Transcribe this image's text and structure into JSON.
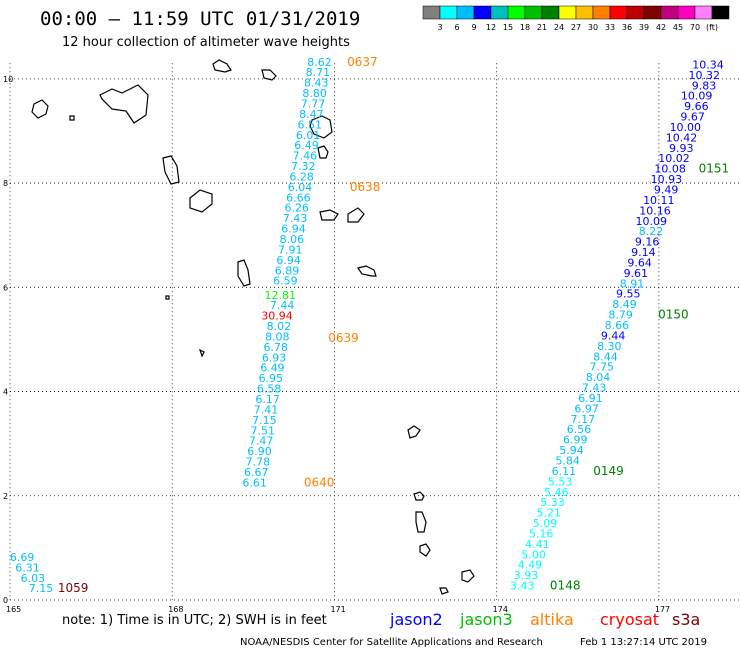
{
  "header": {
    "title": "00:00 – 11:59 UTC 01/31/2019",
    "subtitle": "12 hour collection of altimeter wave heights"
  },
  "colorbar": {
    "swatches": [
      "#808080",
      "#00ffff",
      "#00bfff",
      "#0000ff",
      "#00bfbf",
      "#00ff00",
      "#00bf00",
      "#008000",
      "#ffff00",
      "#ffbf00",
      "#ff8000",
      "#ff0000",
      "#bf0000",
      "#800000",
      "#bf0080",
      "#ff00bf",
      "#ff80ff",
      "#000000"
    ],
    "labels": [
      "3",
      "6",
      "9",
      "12",
      "15",
      "18",
      "21",
      "24",
      "27",
      "30",
      "33",
      "36",
      "39",
      "42",
      "45",
      "70",
      "(ft)"
    ]
  },
  "axes": {
    "x_ticks": [
      "165",
      "168",
      "171",
      "174",
      "177"
    ],
    "y_ticks": [
      "0",
      "2",
      "4",
      "6",
      "8",
      "10"
    ]
  },
  "chart_data": {
    "type": "map",
    "x_range": [
      165,
      178.5
    ],
    "y_range": [
      0,
      10.4
    ],
    "grid": "dotted",
    "points": [
      {
        "lon": 170.95,
        "lat": 10.25,
        "v": "8.62",
        "c": "#00bfff"
      },
      {
        "lon": 170.92,
        "lat": 10.05,
        "v": "8.71",
        "c": "#00bfff"
      },
      {
        "lon": 170.89,
        "lat": 9.85,
        "v": "8.43",
        "c": "#00bfff"
      },
      {
        "lon": 170.86,
        "lat": 9.65,
        "v": "8.80",
        "c": "#00bfff"
      },
      {
        "lon": 170.83,
        "lat": 9.45,
        "v": "7.77",
        "c": "#00bfff"
      },
      {
        "lon": 170.8,
        "lat": 9.25,
        "v": "8.47",
        "c": "#00bfff"
      },
      {
        "lon": 170.77,
        "lat": 9.05,
        "v": "6.51",
        "c": "#00bfff"
      },
      {
        "lon": 170.74,
        "lat": 8.85,
        "v": "6.01",
        "c": "#00bfff"
      },
      {
        "lon": 170.71,
        "lat": 8.65,
        "v": "6.49",
        "c": "#00bfff"
      },
      {
        "lon": 170.68,
        "lat": 8.45,
        "v": "7.46",
        "c": "#00bfff"
      },
      {
        "lon": 170.65,
        "lat": 8.25,
        "v": "7.32",
        "c": "#00bfff"
      },
      {
        "lon": 170.62,
        "lat": 8.05,
        "v": "6.28",
        "c": "#00bfff"
      },
      {
        "lon": 170.59,
        "lat": 7.85,
        "v": "6.04",
        "c": "#00bfff"
      },
      {
        "lon": 170.56,
        "lat": 7.65,
        "v": "6.66",
        "c": "#00bfff"
      },
      {
        "lon": 170.53,
        "lat": 7.45,
        "v": "6.26",
        "c": "#00bfff"
      },
      {
        "lon": 170.5,
        "lat": 7.25,
        "v": "7.43",
        "c": "#00bfff"
      },
      {
        "lon": 170.47,
        "lat": 7.05,
        "v": "6.94",
        "c": "#00bfff"
      },
      {
        "lon": 170.44,
        "lat": 6.85,
        "v": "8.06",
        "c": "#00bfff"
      },
      {
        "lon": 170.41,
        "lat": 6.65,
        "v": "7.91",
        "c": "#00bfff"
      },
      {
        "lon": 170.38,
        "lat": 6.45,
        "v": "6.94",
        "c": "#00bfff"
      },
      {
        "lon": 170.35,
        "lat": 6.25,
        "v": "6.89",
        "c": "#00bfff"
      },
      {
        "lon": 170.32,
        "lat": 6.05,
        "v": "6.59",
        "c": "#00bfff"
      },
      {
        "lon": 170.29,
        "lat": 5.78,
        "v": "12.81",
        "c": "#00ff00"
      },
      {
        "lon": 170.26,
        "lat": 5.58,
        "v": "7.44",
        "c": "#00bfff"
      },
      {
        "lon": 170.23,
        "lat": 5.38,
        "v": "30.94",
        "c": "#ff0000"
      },
      {
        "lon": 170.2,
        "lat": 5.18,
        "v": "8.02",
        "c": "#00bfff"
      },
      {
        "lon": 170.17,
        "lat": 4.98,
        "v": "8.08",
        "c": "#00bfff"
      },
      {
        "lon": 170.14,
        "lat": 4.78,
        "v": "6.78",
        "c": "#00bfff"
      },
      {
        "lon": 170.11,
        "lat": 4.58,
        "v": "6.93",
        "c": "#00bfff"
      },
      {
        "lon": 170.08,
        "lat": 4.38,
        "v": "6.49",
        "c": "#00bfff"
      },
      {
        "lon": 170.05,
        "lat": 4.18,
        "v": "6.95",
        "c": "#00bfff"
      },
      {
        "lon": 170.02,
        "lat": 3.98,
        "v": "6.58",
        "c": "#00bfff"
      },
      {
        "lon": 169.99,
        "lat": 3.78,
        "v": "6.17",
        "c": "#00bfff"
      },
      {
        "lon": 169.96,
        "lat": 3.58,
        "v": "7.41",
        "c": "#00bfff"
      },
      {
        "lon": 169.93,
        "lat": 3.38,
        "v": "7.15",
        "c": "#00bfff"
      },
      {
        "lon": 169.9,
        "lat": 3.18,
        "v": "7.51",
        "c": "#00bfff"
      },
      {
        "lon": 169.87,
        "lat": 2.98,
        "v": "7.47",
        "c": "#00bfff"
      },
      {
        "lon": 169.84,
        "lat": 2.78,
        "v": "6.90",
        "c": "#00bfff"
      },
      {
        "lon": 169.81,
        "lat": 2.58,
        "v": "7.78",
        "c": "#00bfff"
      },
      {
        "lon": 169.78,
        "lat": 2.38,
        "v": "6.67",
        "c": "#00bfff"
      },
      {
        "lon": 169.75,
        "lat": 2.18,
        "v": "6.61",
        "c": "#00bfff"
      },
      {
        "lon": 178.2,
        "lat": 10.2,
        "v": "10.34",
        "c": "#0000ff"
      },
      {
        "lon": 178.13,
        "lat": 10.0,
        "v": "10.32",
        "c": "#0000ff"
      },
      {
        "lon": 178.06,
        "lat": 9.8,
        "v": "9.83",
        "c": "#0000ff"
      },
      {
        "lon": 177.99,
        "lat": 9.6,
        "v": "10.09",
        "c": "#0000ff"
      },
      {
        "lon": 177.92,
        "lat": 9.4,
        "v": "9.66",
        "c": "#0000ff"
      },
      {
        "lon": 177.85,
        "lat": 9.2,
        "v": "9.67",
        "c": "#0000ff"
      },
      {
        "lon": 177.78,
        "lat": 9.0,
        "v": "10.00",
        "c": "#0000ff"
      },
      {
        "lon": 177.71,
        "lat": 8.8,
        "v": "10.42",
        "c": "#0000ff"
      },
      {
        "lon": 177.64,
        "lat": 8.6,
        "v": "9.93",
        "c": "#0000ff"
      },
      {
        "lon": 177.57,
        "lat": 8.4,
        "v": "10.02",
        "c": "#0000ff"
      },
      {
        "lon": 177.5,
        "lat": 8.2,
        "v": "10.08",
        "c": "#0000ff"
      },
      {
        "lon": 177.43,
        "lat": 8.0,
        "v": "10.93",
        "c": "#0000ff"
      },
      {
        "lon": 177.36,
        "lat": 7.8,
        "v": "9.49",
        "c": "#0000ff"
      },
      {
        "lon": 177.29,
        "lat": 7.6,
        "v": "10.11",
        "c": "#0000ff"
      },
      {
        "lon": 177.22,
        "lat": 7.4,
        "v": "10.16",
        "c": "#0000ff"
      },
      {
        "lon": 177.15,
        "lat": 7.2,
        "v": "10.09",
        "c": "#0000ff"
      },
      {
        "lon": 177.08,
        "lat": 7.0,
        "v": "8.22",
        "c": "#00bfff"
      },
      {
        "lon": 177.01,
        "lat": 6.8,
        "v": "9.16",
        "c": "#0000ff"
      },
      {
        "lon": 176.94,
        "lat": 6.6,
        "v": "9.14",
        "c": "#0000ff"
      },
      {
        "lon": 176.87,
        "lat": 6.4,
        "v": "9.64",
        "c": "#0000ff"
      },
      {
        "lon": 176.8,
        "lat": 6.2,
        "v": "9.61",
        "c": "#0000ff"
      },
      {
        "lon": 176.73,
        "lat": 6.0,
        "v": "8.91",
        "c": "#00bfff"
      },
      {
        "lon": 176.66,
        "lat": 5.8,
        "v": "9.55",
        "c": "#0000ff"
      },
      {
        "lon": 176.59,
        "lat": 5.6,
        "v": "8.49",
        "c": "#00bfff"
      },
      {
        "lon": 176.52,
        "lat": 5.4,
        "v": "8.79",
        "c": "#00bfff"
      },
      {
        "lon": 176.45,
        "lat": 5.2,
        "v": "8.66",
        "c": "#00bfff"
      },
      {
        "lon": 176.38,
        "lat": 5.0,
        "v": "9.44",
        "c": "#0000ff"
      },
      {
        "lon": 176.31,
        "lat": 4.8,
        "v": "8.30",
        "c": "#00bfff"
      },
      {
        "lon": 176.24,
        "lat": 4.6,
        "v": "8.44",
        "c": "#00bfff"
      },
      {
        "lon": 176.17,
        "lat": 4.4,
        "v": "7.75",
        "c": "#00bfff"
      },
      {
        "lon": 176.1,
        "lat": 4.2,
        "v": "8.04",
        "c": "#00bfff"
      },
      {
        "lon": 176.03,
        "lat": 4.0,
        "v": "7.43",
        "c": "#00bfff"
      },
      {
        "lon": 175.96,
        "lat": 3.8,
        "v": "6.91",
        "c": "#00bfff"
      },
      {
        "lon": 175.89,
        "lat": 3.6,
        "v": "6.97",
        "c": "#00bfff"
      },
      {
        "lon": 175.82,
        "lat": 3.4,
        "v": "7.17",
        "c": "#00bfff"
      },
      {
        "lon": 175.75,
        "lat": 3.2,
        "v": "6.56",
        "c": "#00bfff"
      },
      {
        "lon": 175.68,
        "lat": 3.0,
        "v": "6.99",
        "c": "#00bfff"
      },
      {
        "lon": 175.61,
        "lat": 2.8,
        "v": "5.94",
        "c": "#00bfff"
      },
      {
        "lon": 175.54,
        "lat": 2.6,
        "v": "5.84",
        "c": "#00bfff"
      },
      {
        "lon": 175.47,
        "lat": 2.4,
        "v": "6.11",
        "c": "#00bfff"
      },
      {
        "lon": 175.4,
        "lat": 2.2,
        "v": "5.53",
        "c": "#00ffff"
      },
      {
        "lon": 175.33,
        "lat": 2.0,
        "v": "5.46",
        "c": "#00ffff"
      },
      {
        "lon": 175.26,
        "lat": 1.8,
        "v": "5.33",
        "c": "#00ffff"
      },
      {
        "lon": 175.19,
        "lat": 1.6,
        "v": "5.21",
        "c": "#00ffff"
      },
      {
        "lon": 175.12,
        "lat": 1.4,
        "v": "5.09",
        "c": "#00ffff"
      },
      {
        "lon": 175.05,
        "lat": 1.2,
        "v": "5.16",
        "c": "#00ffff"
      },
      {
        "lon": 174.98,
        "lat": 1.0,
        "v": "4.41",
        "c": "#00ffff"
      },
      {
        "lon": 174.91,
        "lat": 0.8,
        "v": "5.00",
        "c": "#00ffff"
      },
      {
        "lon": 174.84,
        "lat": 0.6,
        "v": "4.49",
        "c": "#00ffff"
      },
      {
        "lon": 174.77,
        "lat": 0.4,
        "v": "3.93",
        "c": "#00ffff"
      },
      {
        "lon": 174.7,
        "lat": 0.2,
        "v": "3.43",
        "c": "#00ffff"
      },
      {
        "lon": 165.45,
        "lat": 0.75,
        "v": "6.69",
        "c": "#00bfff"
      },
      {
        "lon": 165.55,
        "lat": 0.55,
        "v": "6.31",
        "c": "#00bfff"
      },
      {
        "lon": 165.65,
        "lat": 0.35,
        "v": "6.03",
        "c": "#00bfff"
      },
      {
        "lon": 165.8,
        "lat": 0.15,
        "v": "7.15",
        "c": "#00bfff"
      }
    ],
    "time_labels": [
      {
        "lon": 171.8,
        "lat": 10.25,
        "t": "0637",
        "c": "#ff8000"
      },
      {
        "lon": 171.85,
        "lat": 7.85,
        "t": "0638",
        "c": "#ff8000"
      },
      {
        "lon": 171.45,
        "lat": 4.95,
        "t": "0639",
        "c": "#ff8000"
      },
      {
        "lon": 171.0,
        "lat": 2.18,
        "t": "0640",
        "c": "#ff8000"
      },
      {
        "lon": 178.3,
        "lat": 8.2,
        "t": "0151",
        "c": "#008000"
      },
      {
        "lon": 177.55,
        "lat": 5.4,
        "t": "0150",
        "c": "#008000"
      },
      {
        "lon": 176.35,
        "lat": 2.4,
        "t": "0149",
        "c": "#008000"
      },
      {
        "lon": 175.55,
        "lat": 0.2,
        "t": "0148",
        "c": "#008000"
      },
      {
        "lon": 166.45,
        "lat": 0.15,
        "t": "1059",
        "c": "#800000"
      }
    ]
  },
  "footer": {
    "note": "note:  1) Time is in UTC; 2) SWH is in feet",
    "satellites": [
      {
        "name": "jason2",
        "color": "#0000ff"
      },
      {
        "name": "jason3",
        "color": "#00bf00"
      },
      {
        "name": "altika",
        "color": "#ff8000"
      },
      {
        "name": "cryosat",
        "color": "#ff0000"
      },
      {
        "name": "s3a",
        "color": "#800000"
      }
    ],
    "credit": "NOAA/NESDIS Center for Satellite Applications and Research",
    "timestamp": "Feb  1 13:27:14 UTC 2019"
  }
}
